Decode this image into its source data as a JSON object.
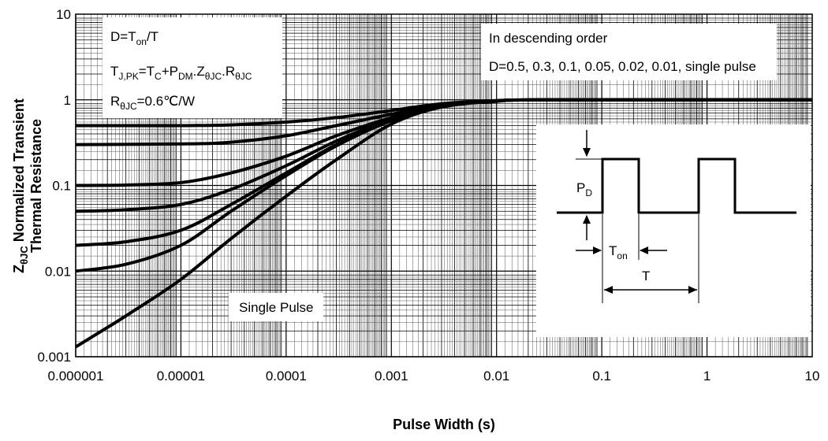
{
  "chart_data": {
    "type": "line",
    "title": "",
    "xlabel": "Pulse Width (s)",
    "ylabel_line1": "ZθJC Normalized Transient",
    "ylabel_line2": "Thermal Resistance",
    "x_scale": "log",
    "y_scale": "log",
    "xlim": [
      1e-06,
      10
    ],
    "ylim": [
      0.001,
      10
    ],
    "x_ticks": [
      1e-06,
      1e-05,
      0.0001,
      0.001,
      0.01,
      0.1,
      1,
      10
    ],
    "x_tick_labels": [
      "0.000001",
      "0.00001",
      "0.0001",
      "0.001",
      "0.01",
      "0.1",
      "1",
      "10"
    ],
    "y_ticks": [
      0.001,
      0.01,
      0.1,
      1,
      10
    ],
    "y_tick_labels": [
      "0.001",
      "0.01",
      "0.1",
      "1",
      "10"
    ],
    "grid": true,
    "series": [
      {
        "values": [
          [
            1e-06,
            0.5
          ],
          [
            1e-05,
            0.5
          ],
          [
            3e-05,
            0.51
          ],
          [
            0.0001,
            0.55
          ],
          [
            0.0003,
            0.62
          ],
          [
            0.001,
            0.75
          ],
          [
            0.003,
            0.9
          ],
          [
            0.01,
            0.98
          ],
          [
            0.03,
            1
          ],
          [
            10,
            1
          ]
        ]
      },
      {
        "values": [
          [
            1e-06,
            0.3
          ],
          [
            1e-05,
            0.305
          ],
          [
            3e-05,
            0.32
          ],
          [
            0.0001,
            0.38
          ],
          [
            0.0003,
            0.5
          ],
          [
            0.001,
            0.68
          ],
          [
            0.003,
            0.88
          ],
          [
            0.01,
            0.97
          ],
          [
            0.03,
            1
          ],
          [
            10,
            1
          ]
        ]
      },
      {
        "values": [
          [
            1e-06,
            0.1
          ],
          [
            3e-06,
            0.101
          ],
          [
            1e-05,
            0.108
          ],
          [
            3e-05,
            0.14
          ],
          [
            0.0001,
            0.22
          ],
          [
            0.0003,
            0.38
          ],
          [
            0.001,
            0.62
          ],
          [
            0.003,
            0.86
          ],
          [
            0.01,
            0.97
          ],
          [
            0.03,
            1
          ],
          [
            10,
            1
          ]
        ]
      },
      {
        "values": [
          [
            1e-06,
            0.05
          ],
          [
            3e-06,
            0.052
          ],
          [
            1e-05,
            0.06
          ],
          [
            3e-05,
            0.09
          ],
          [
            0.0001,
            0.17
          ],
          [
            0.0003,
            0.33
          ],
          [
            0.001,
            0.6
          ],
          [
            0.003,
            0.85
          ],
          [
            0.01,
            0.97
          ],
          [
            0.03,
            1
          ],
          [
            10,
            1
          ]
        ]
      },
      {
        "values": [
          [
            1e-06,
            0.02
          ],
          [
            3e-06,
            0.022
          ],
          [
            1e-05,
            0.03
          ],
          [
            3e-05,
            0.06
          ],
          [
            0.0001,
            0.14
          ],
          [
            0.0003,
            0.3
          ],
          [
            0.001,
            0.58
          ],
          [
            0.003,
            0.84
          ],
          [
            0.01,
            0.97
          ],
          [
            0.03,
            1
          ],
          [
            10,
            1
          ]
        ]
      },
      {
        "values": [
          [
            1e-06,
            0.01
          ],
          [
            3e-06,
            0.012
          ],
          [
            1e-05,
            0.02
          ],
          [
            3e-05,
            0.05
          ],
          [
            0.0001,
            0.13
          ],
          [
            0.0003,
            0.29
          ],
          [
            0.001,
            0.57
          ],
          [
            0.003,
            0.84
          ],
          [
            0.01,
            0.97
          ],
          [
            0.03,
            1
          ],
          [
            10,
            1
          ]
        ]
      },
      {
        "values": [
          [
            1e-06,
            0.0013
          ],
          [
            2e-06,
            0.0022
          ],
          [
            3e-06,
            0.003
          ],
          [
            1e-05,
            0.008
          ],
          [
            3e-05,
            0.024
          ],
          [
            0.0001,
            0.075
          ],
          [
            0.0003,
            0.2
          ],
          [
            0.001,
            0.52
          ],
          [
            0.003,
            0.82
          ],
          [
            0.01,
            0.96
          ],
          [
            0.03,
            1
          ],
          [
            10,
            1
          ]
        ]
      }
    ],
    "annotations": {
      "box1_line1": "D=Ton/T",
      "box1_line2": "TJ,PK=TC+PDM.ZθJC.RθJC",
      "box1_line3": "RθJC=0.6℃/W",
      "box2_line1": "In descending order",
      "box2_line2": "D=0.5, 0.3, 0.1, 0.05, 0.02, 0.01, single pulse",
      "single_pulse": "Single Pulse",
      "inset_pd": "PD",
      "inset_ton": "Ton",
      "inset_t": "T"
    }
  }
}
